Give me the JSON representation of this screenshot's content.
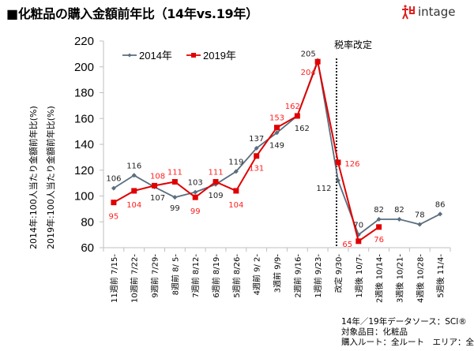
{
  "header": {
    "title": "■化粧品の購入金額前年比（14年vs.19年）",
    "logo_text": "intage"
  },
  "y_axis_labels": [
    "2014年:100人当たり金額前年比(%)",
    "2019年:100人当たり金額前年比(%)"
  ],
  "source_note": [
    "14年／19年データソース：SCI®",
    "対象品目：化粧品",
    "購入ルート：全ルート　エリア：全国"
  ],
  "chart_data": {
    "type": "line",
    "title": "化粧品の購入金額前年比（14年vs.19年）",
    "xlabel": "",
    "ylabel": "2014年:100人当たり金額前年比(%) / 2019年:100人当たり金額前年比(%)",
    "ylim": [
      60,
      220
    ],
    "yticks": [
      60,
      80,
      100,
      120,
      140,
      160,
      180,
      200,
      220
    ],
    "grid": false,
    "legend_position": "top-left",
    "categories": [
      "11週前 7/15-",
      "10週前 7/22-",
      "9週前 7/29-",
      "8週前 8/ 5-",
      "7週前 8/12-",
      "6週前 8/19-",
      "5週前 8/26-",
      "4週前 9/ 2-",
      "3週前 9/9-",
      "2週前 9/16-",
      "1週前 9/23-",
      "改定 9/30-",
      "1週後 10/7-",
      "2週後 10/14-",
      "3週後 10/21-",
      "4週後 10/28-",
      "5週後 11/4-"
    ],
    "series": [
      {
        "name": "2014年",
        "color": "#5a6e7f",
        "marker": "diamond",
        "values": [
          106,
          116,
          107,
          99,
          103,
          109,
          119,
          137,
          149,
          162,
          205,
          112,
          70,
          82,
          82,
          78,
          86
        ]
      },
      {
        "name": "2019年",
        "color": "#e00000",
        "label_color": "#ff2020",
        "marker": "square",
        "values": [
          95,
          104,
          108,
          111,
          99,
          111,
          104,
          131,
          153,
          162,
          204,
          126,
          65,
          76,
          null,
          null,
          null
        ]
      }
    ],
    "annotations": [
      {
        "text": "税率改定",
        "category": "改定 9/30-",
        "style": "dotted-vertical-line"
      }
    ]
  }
}
